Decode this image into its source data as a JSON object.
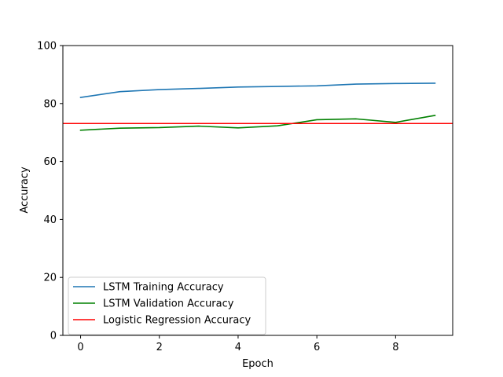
{
  "chart_data": {
    "type": "line",
    "title": "",
    "xlabel": "Epoch",
    "ylabel": "Accuracy",
    "xlim": [
      -0.45,
      9.45
    ],
    "ylim": [
      0,
      100
    ],
    "xticks": [
      0,
      2,
      4,
      6,
      8
    ],
    "yticks": [
      0,
      20,
      40,
      60,
      80,
      100
    ],
    "grid": false,
    "legend_position": "lower-left",
    "x": [
      0,
      1,
      2,
      3,
      4,
      5,
      6,
      7,
      8,
      9
    ],
    "series": [
      {
        "name": "LSTM Training Accuracy",
        "color": "#1f77b4",
        "values": [
          82.1,
          84.1,
          84.8,
          85.2,
          85.7,
          85.9,
          86.1,
          86.7,
          86.9,
          87.0
        ]
      },
      {
        "name": "LSTM Validation Accuracy",
        "color": "#008000",
        "values": [
          70.8,
          71.5,
          71.7,
          72.2,
          71.6,
          72.3,
          74.4,
          74.7,
          73.5,
          75.9
        ]
      }
    ],
    "hlines": [
      {
        "name": "Logistic Regression Accuracy",
        "color": "#ff0000",
        "value": 73.1
      }
    ]
  }
}
